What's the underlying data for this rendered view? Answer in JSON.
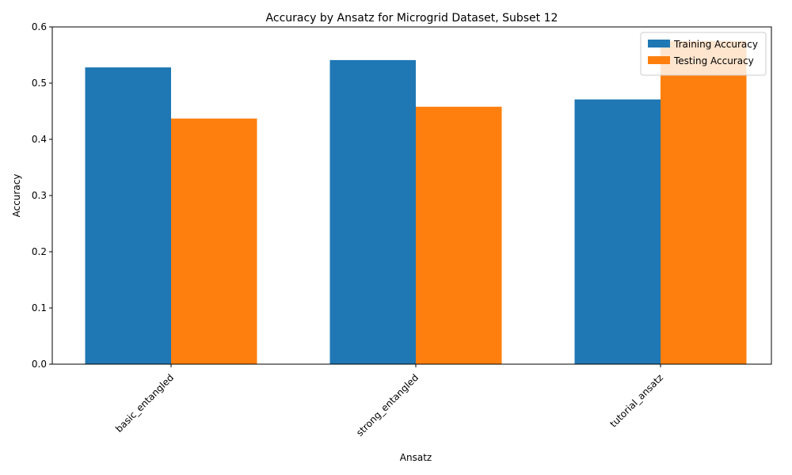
{
  "chart_data": {
    "type": "bar",
    "title": "Accuracy by Ansatz for Microgrid Dataset, Subset 12",
    "xlabel": "Ansatz",
    "ylabel": "Accuracy",
    "categories": [
      "basic_entangled",
      "strong_entangled",
      "tutorial_ansatz"
    ],
    "series": [
      {
        "name": "Training Accuracy",
        "color": "#1f77b4",
        "values": [
          0.528,
          0.541,
          0.471
        ]
      },
      {
        "name": "Testing Accuracy",
        "color": "#ff7f0e",
        "values": [
          0.437,
          0.458,
          0.575
        ]
      }
    ],
    "ylim": [
      0,
      0.6
    ],
    "yticks": [
      "0.0",
      "0.1",
      "0.2",
      "0.3",
      "0.4",
      "0.5",
      "0.6"
    ],
    "legend_position": "top-right",
    "grid": false
  }
}
